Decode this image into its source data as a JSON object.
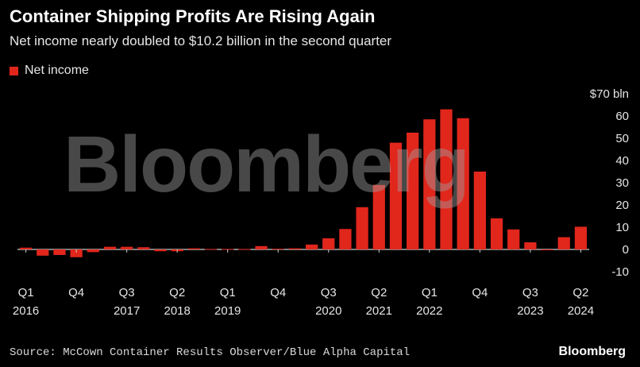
{
  "header": {
    "title": "Container Shipping Profits Are Rising Again",
    "subtitle": "Net income nearly doubled to $10.2 billion in the second quarter"
  },
  "legend": {
    "label": "Net income"
  },
  "footer": {
    "source": "Source: McCown Container Results Observer/Blue Alpha Capital",
    "brand": "Bloomberg"
  },
  "watermark": "Bloomberg",
  "colors": {
    "bar": "#e1261c",
    "background": "#000000",
    "axis": "#ffffff",
    "grid": "#4a4a4a"
  },
  "chart_data": {
    "type": "bar",
    "ylim": [
      -10,
      70
    ],
    "yticks": [
      -10,
      0,
      10,
      20,
      30,
      40,
      50,
      60,
      70
    ],
    "ytick_labels": [
      "-10",
      "0",
      "10",
      "20",
      "30",
      "40",
      "50",
      "60",
      "$70 bln"
    ],
    "grid": false,
    "legend_position": "top-left",
    "series": [
      {
        "name": "Net income",
        "categories": [
          "Q1 2016",
          "Q2 2016",
          "Q3 2016",
          "Q4 2016",
          "Q1 2017",
          "Q2 2017",
          "Q3 2017",
          "Q4 2017",
          "Q1 2018",
          "Q2 2018",
          "Q3 2018",
          "Q4 2018",
          "Q1 2019",
          "Q2 2019",
          "Q3 2019",
          "Q4 2019",
          "Q1 2020",
          "Q2 2020",
          "Q3 2020",
          "Q4 2020",
          "Q1 2021",
          "Q2 2021",
          "Q3 2021",
          "Q4 2021",
          "Q1 2022",
          "Q2 2022",
          "Q3 2022",
          "Q4 2022",
          "Q1 2023",
          "Q2 2023",
          "Q3 2023",
          "Q4 2023",
          "Q1 2024",
          "Q2 2024"
        ],
        "values": [
          0.8,
          -2.8,
          -2.5,
          -3.5,
          -1.2,
          1.2,
          1.2,
          1.0,
          -0.8,
          -0.8,
          0.5,
          0.2,
          0.2,
          0.2,
          1.5,
          0.3,
          0.5,
          2.2,
          5.0,
          9.2,
          19.0,
          29.0,
          48.0,
          52.5,
          58.5,
          63.0,
          59.0,
          35.0,
          14.0,
          9.0,
          3.2,
          -0.2,
          5.5,
          10.2
        ]
      }
    ],
    "x_tick_labels": [
      {
        "index": 0,
        "quarter": "Q1",
        "year": "2016"
      },
      {
        "index": 3,
        "quarter": "Q4",
        "year": ""
      },
      {
        "index": 6,
        "quarter": "Q3",
        "year": "2017"
      },
      {
        "index": 9,
        "quarter": "Q2",
        "year": "2018"
      },
      {
        "index": 12,
        "quarter": "Q1",
        "year": "2019"
      },
      {
        "index": 15,
        "quarter": "Q4",
        "year": ""
      },
      {
        "index": 18,
        "quarter": "Q3",
        "year": "2020"
      },
      {
        "index": 21,
        "quarter": "Q2",
        "year": "2021"
      },
      {
        "index": 24,
        "quarter": "Q1",
        "year": "2022"
      },
      {
        "index": 27,
        "quarter": "Q4",
        "year": ""
      },
      {
        "index": 30,
        "quarter": "Q3",
        "year": "2023"
      },
      {
        "index": 33,
        "quarter": "Q2",
        "year": "2024"
      }
    ]
  }
}
